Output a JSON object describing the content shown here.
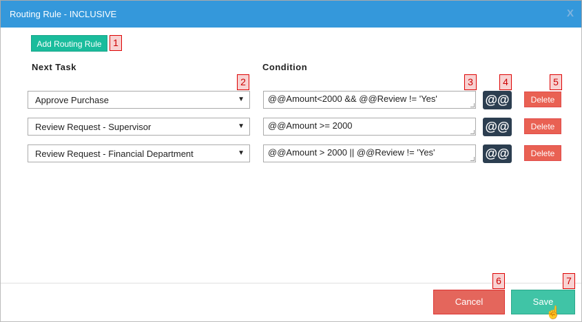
{
  "dialog": {
    "title": "Routing Rule - INCLUSIVE",
    "close_label": "X"
  },
  "add_button": "Add Routing Rule",
  "columns": {
    "next_task": "Next Task",
    "condition": "Condition"
  },
  "rules": [
    {
      "task": "Approve Purchase",
      "condition": "@@Amount<2000 && @@Review != 'Yes'",
      "at_label": "@@",
      "delete_label": "Delete"
    },
    {
      "task": "Review Request - Supervisor",
      "condition": "@@Amount >= 2000",
      "at_label": "@@",
      "delete_label": "Delete"
    },
    {
      "task": "Review Request - Financial Department",
      "condition": "@@Amount > 2000 || @@Review != 'Yes'",
      "at_label": "@@",
      "delete_label": "Delete"
    }
  ],
  "annotations": [
    "1",
    "2",
    "3",
    "4",
    "5",
    "6",
    "7"
  ],
  "footer": {
    "cancel": "Cancel",
    "save": "Save"
  },
  "colors": {
    "header": "#3498db",
    "add": "#1abc9c",
    "delete": "#e74c3c",
    "at": "#2c3e50",
    "save": "#40c4a6",
    "cancel": "#e4665c"
  }
}
